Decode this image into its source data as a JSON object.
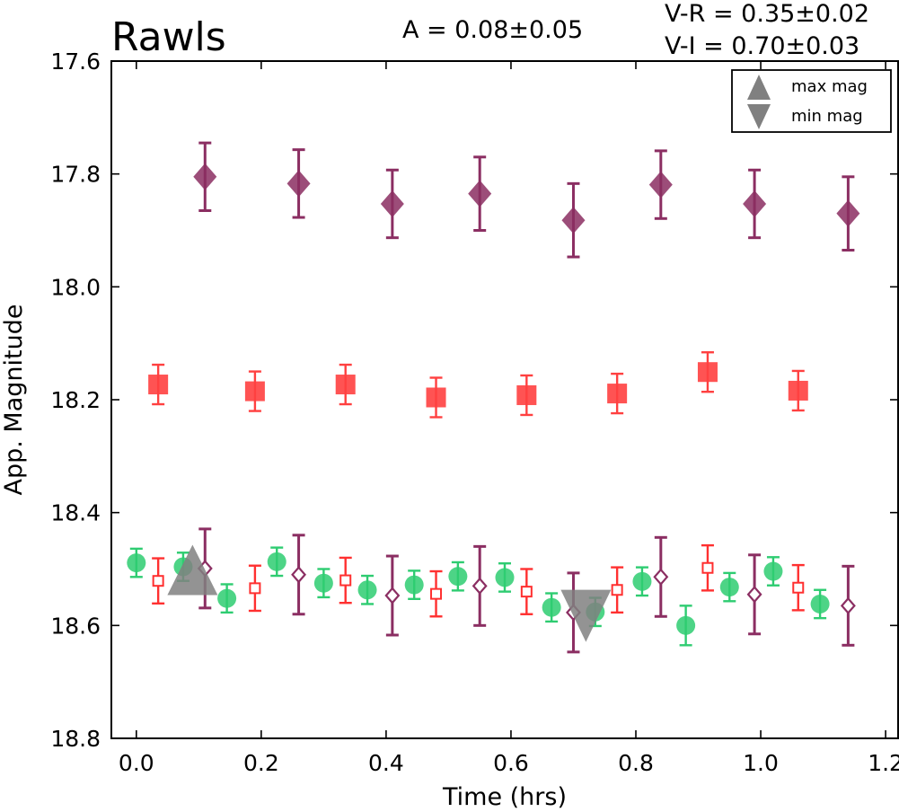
{
  "chart_data": {
    "type": "scatter",
    "title": "Rawls",
    "annotations": {
      "amplitude": "A  = 0.08±0.05",
      "color_vr": "V-R = 0.35±0.02",
      "color_vi": "V-I  = 0.70±0.03"
    },
    "xlabel": "Time (hrs)",
    "ylabel": "App. Magnitude",
    "xlim": [
      -0.04,
      1.22
    ],
    "ylim": [
      18.8,
      17.6
    ],
    "y_axis_inverted": true,
    "xticks": [
      "0.0",
      "0.2",
      "0.4",
      "0.6",
      "0.8",
      "1.0",
      "1.2"
    ],
    "yticks": [
      "17.6",
      "17.8",
      "18.0",
      "18.2",
      "18.4",
      "18.6",
      "18.8"
    ],
    "grid": false,
    "legend_position": "top-right",
    "legend": [
      {
        "label": "max mag",
        "marker": "triangle-up",
        "color": "#808080"
      },
      {
        "label": "min mag",
        "marker": "triangle-down",
        "color": "#808080"
      }
    ],
    "series": [
      {
        "marker": "diamond-filled",
        "color": "#8B2E62",
        "x": [
          0.11,
          0.26,
          0.41,
          0.55,
          0.7,
          0.84,
          0.99,
          1.14
        ],
        "y": [
          17.805,
          17.817,
          17.853,
          17.835,
          17.882,
          17.819,
          17.853,
          17.87
        ],
        "err": [
          0.06,
          0.06,
          0.06,
          0.065,
          0.065,
          0.06,
          0.06,
          0.065
        ]
      },
      {
        "marker": "square-filled",
        "color": "#FF4040",
        "x": [
          0.035,
          0.19,
          0.335,
          0.48,
          0.625,
          0.77,
          0.915,
          1.06
        ],
        "y": [
          18.173,
          18.185,
          18.173,
          18.196,
          18.192,
          18.189,
          18.151,
          18.184
        ],
        "err": [
          0.035,
          0.035,
          0.035,
          0.035,
          0.035,
          0.035,
          0.035,
          0.035
        ]
      },
      {
        "marker": "circle-filled",
        "color": "#2ECC71",
        "x": [
          0.0,
          0.075,
          0.145,
          0.225,
          0.3,
          0.37,
          0.445,
          0.515,
          0.59,
          0.665,
          0.735,
          0.81,
          0.88,
          0.95,
          1.02,
          1.095
        ],
        "y": [
          18.489,
          18.496,
          18.552,
          18.487,
          18.525,
          18.537,
          18.528,
          18.513,
          18.515,
          18.568,
          18.576,
          18.522,
          18.6,
          18.532,
          18.504,
          18.562
        ],
        "err": [
          0.025,
          0.025,
          0.025,
          0.025,
          0.025,
          0.025,
          0.025,
          0.025,
          0.025,
          0.025,
          0.025,
          0.025,
          0.035,
          0.025,
          0.025,
          0.025
        ]
      },
      {
        "marker": "square-open",
        "color": "#FF3030",
        "x": [
          0.035,
          0.19,
          0.335,
          0.48,
          0.625,
          0.77,
          0.915,
          1.06
        ],
        "y": [
          18.521,
          18.534,
          18.52,
          18.544,
          18.54,
          18.537,
          18.498,
          18.533
        ],
        "err": [
          0.04,
          0.04,
          0.04,
          0.04,
          0.04,
          0.04,
          0.04,
          0.04
        ]
      },
      {
        "marker": "diamond-open",
        "color": "#8B2E62",
        "x": [
          0.11,
          0.26,
          0.41,
          0.55,
          0.7,
          0.84,
          0.99,
          1.14
        ],
        "y": [
          18.499,
          18.51,
          18.547,
          18.53,
          18.577,
          18.514,
          18.545,
          18.565
        ],
        "err": [
          0.07,
          0.07,
          0.07,
          0.07,
          0.07,
          0.07,
          0.07,
          0.07
        ]
      },
      {
        "marker": "triangle-up",
        "color": "#808080",
        "x": [
          0.09
        ],
        "y": [
          18.508
        ],
        "err": [
          0
        ]
      },
      {
        "marker": "triangle-down",
        "color": "#808080",
        "x": [
          0.72
        ],
        "y": [
          18.575
        ],
        "err": [
          0
        ]
      }
    ]
  }
}
